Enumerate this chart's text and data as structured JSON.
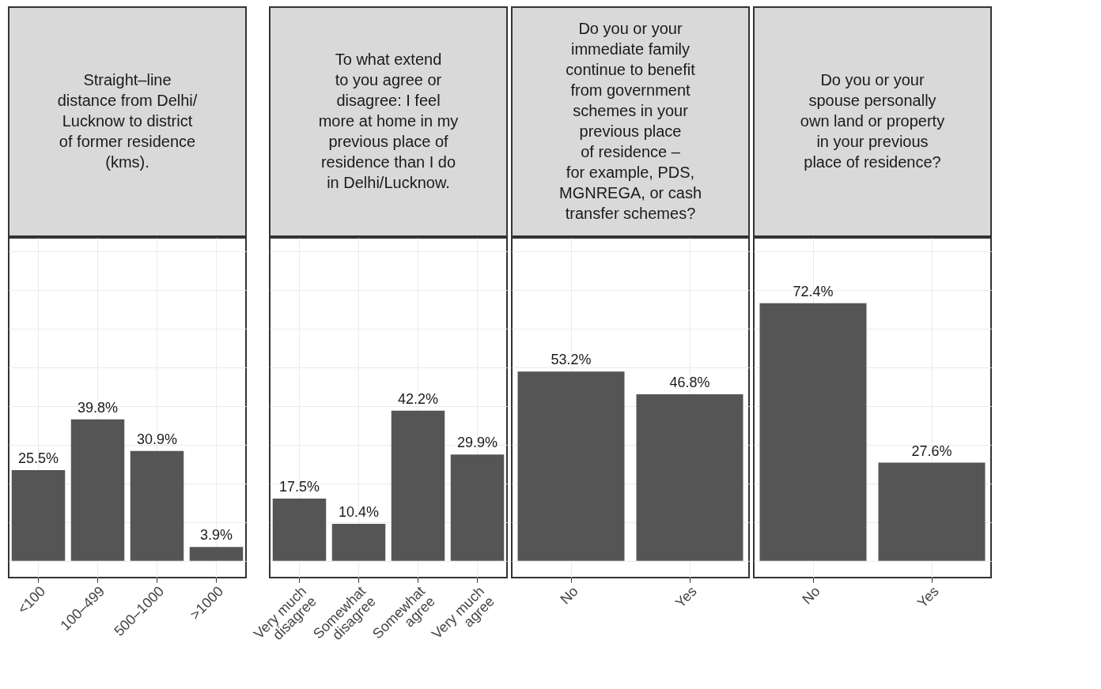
{
  "chart_data": [
    {
      "type": "bar",
      "title": "Straight–line\ndistance from Delhi/\nLucknow to district\nof former residence\n(kms).",
      "categories": [
        "<100",
        "100–499",
        "500–1000",
        ">1000"
      ],
      "values": [
        25.5,
        39.8,
        30.9,
        3.9
      ],
      "value_labels": [
        "25.5%",
        "39.8%",
        "30.9%",
        "3.9%"
      ],
      "color": "#555555",
      "ylim": [
        -4.7,
        90.8
      ],
      "yticks": [
        {
          "value": 0,
          "label": null
        },
        {
          "value": 10.9,
          "label": null
        },
        {
          "value": 21.7,
          "label": null
        },
        {
          "value": 32.6,
          "label": null
        },
        {
          "value": 43.5,
          "label": null
        },
        {
          "value": 54.3,
          "label": null
        },
        {
          "value": 65.2,
          "label": null
        },
        {
          "value": 76.1,
          "label": null
        },
        {
          "value": 87,
          "label": null
        }
      ],
      "grid": true,
      "tick_labels": "x"
    },
    {
      "type": "bar",
      "title": "To what extend\nto you agree or\ndisagree: I feel\nmore at home in my\nprevious place of\nresidence than I do\nin Delhi/Lucknow.",
      "categories": [
        "Very much\ndisagree",
        "Somewhat\ndisagree",
        "Somewhat\nagree",
        "Very much\nagree"
      ],
      "values": [
        17.5,
        10.4,
        42.2,
        29.9
      ],
      "value_labels": [
        "17.5%",
        "10.4%",
        "42.2%",
        "29.9%"
      ],
      "color": "#555555",
      "ylim": [
        -4.7,
        90.8
      ],
      "yticks": [
        {
          "value": 0,
          "label": null
        },
        {
          "value": 10.9,
          "label": null
        },
        {
          "value": 21.7,
          "label": null
        },
        {
          "value": 32.6,
          "label": null
        },
        {
          "value": 43.5,
          "label": null
        },
        {
          "value": 54.3,
          "label": null
        },
        {
          "value": 65.2,
          "label": null
        },
        {
          "value": 76.1,
          "label": null
        },
        {
          "value": 87,
          "label": null
        }
      ],
      "grid": true,
      "tick_labels": "x"
    },
    {
      "type": "bar",
      "title": "Do you or your\nimmediate family\ncontinue to benefit\nfrom government\nschemes in your\nprevious place\nof residence –\nfor example, PDS,\nMGNREGA, or cash\ntransfer schemes?",
      "categories": [
        "No",
        "Yes"
      ],
      "values": [
        53.2,
        46.8
      ],
      "value_labels": [
        "53.2%",
        "46.8%"
      ],
      "color": "#555555",
      "ylim": [
        -4.7,
        90.8
      ],
      "yticks": [
        {
          "value": 0,
          "label": null
        },
        {
          "value": 10.9,
          "label": null
        },
        {
          "value": 21.7,
          "label": null
        },
        {
          "value": 32.6,
          "label": null
        },
        {
          "value": 43.5,
          "label": null
        },
        {
          "value": 54.3,
          "label": null
        },
        {
          "value": 65.2,
          "label": null
        },
        {
          "value": 76.1,
          "label": null
        },
        {
          "value": 87,
          "label": null
        }
      ],
      "grid": true,
      "tick_labels": "x"
    },
    {
      "type": "bar",
      "title": "Do you or your\nspouse personally\nown land or property\nin your previous\nplace of residence?",
      "categories": [
        "No",
        "Yes"
      ],
      "values": [
        72.4,
        27.6
      ],
      "value_labels": [
        "72.4%",
        "27.6%"
      ],
      "color": "#555555",
      "ylim": [
        -4.7,
        90.8
      ],
      "yticks": [
        {
          "value": 0,
          "label": null
        },
        {
          "value": 10.9,
          "label": null
        },
        {
          "value": 21.7,
          "label": null
        },
        {
          "value": 32.6,
          "label": null
        },
        {
          "value": 43.5,
          "label": null
        },
        {
          "value": 54.3,
          "label": null
        },
        {
          "value": 65.2,
          "label": null
        },
        {
          "value": 76.1,
          "label": null
        },
        {
          "value": 87,
          "label": null
        }
      ],
      "grid": true,
      "tick_labels": "x"
    }
  ]
}
